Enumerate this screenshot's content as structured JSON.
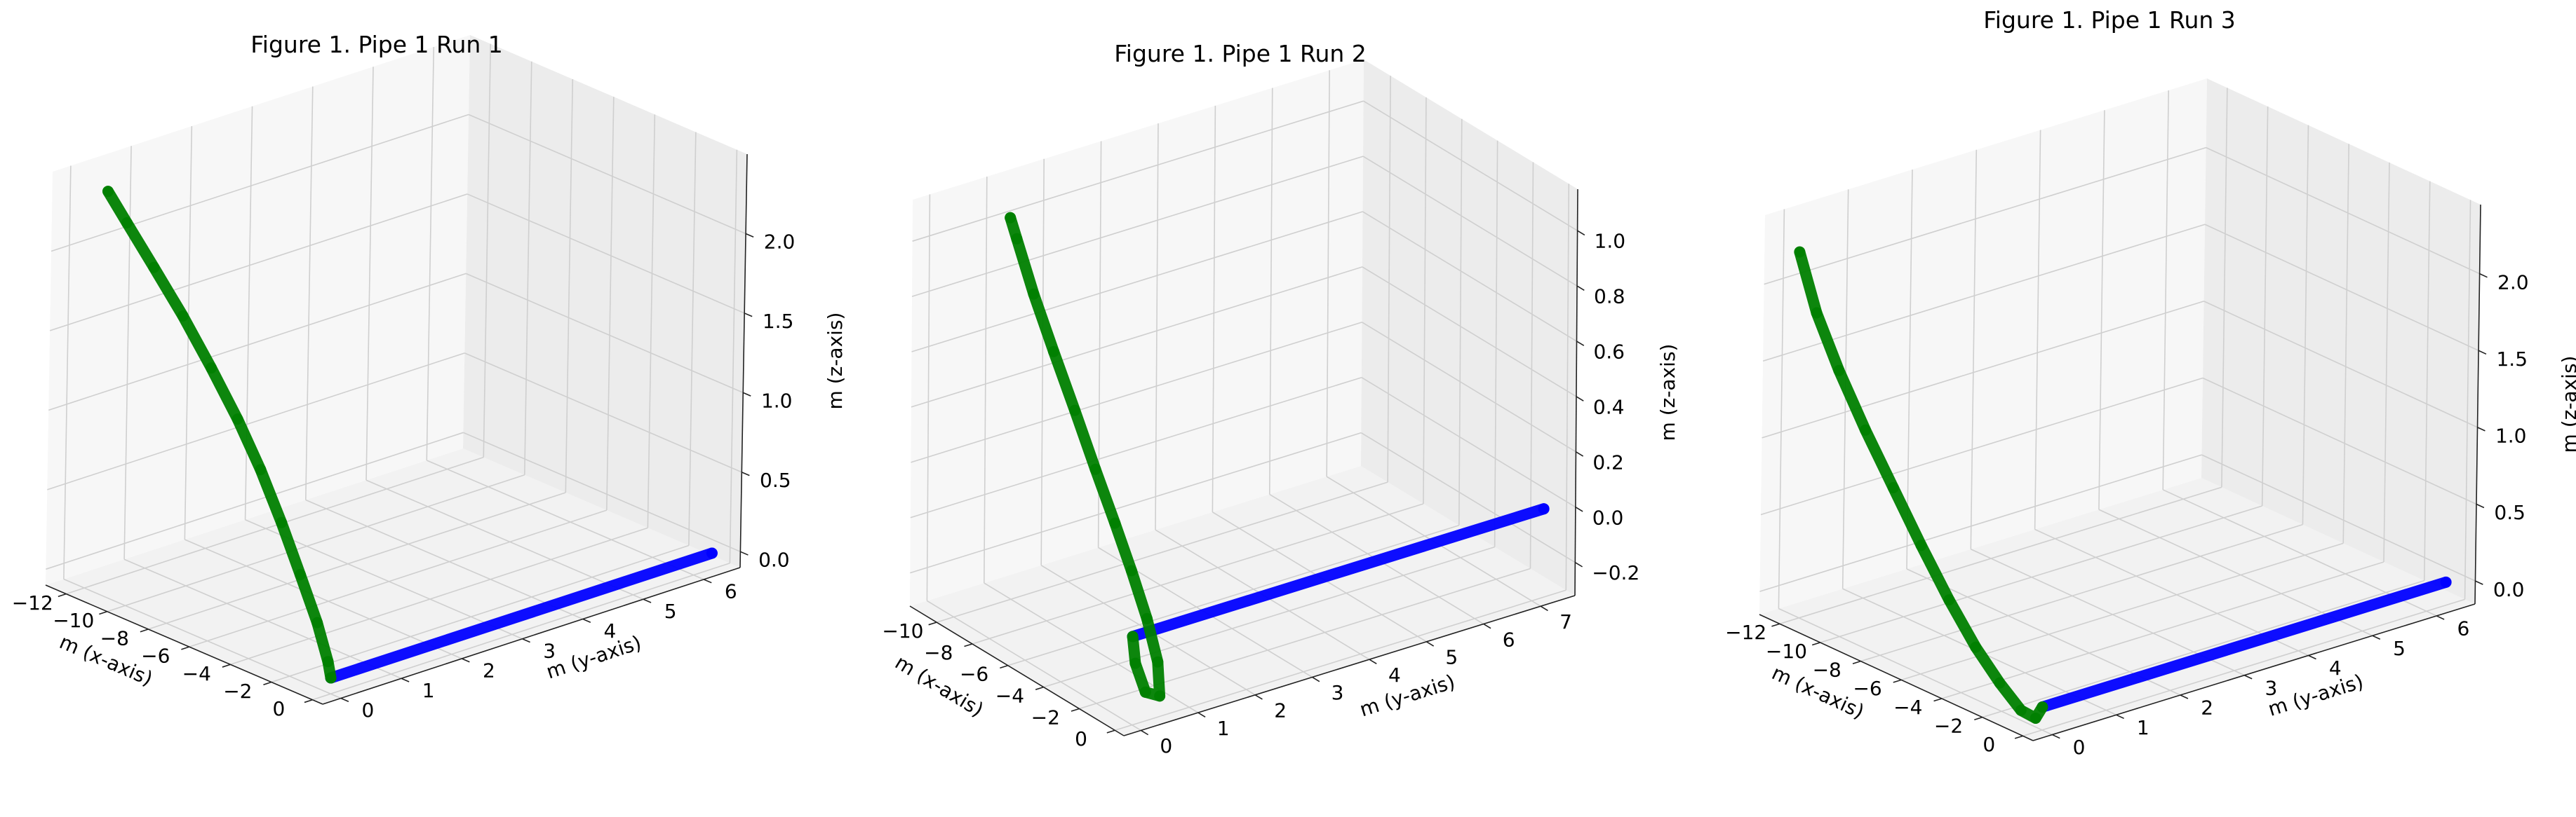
{
  "chart_data": [
    {
      "type": "line",
      "title": "Figure 1. Pipe 1 Run 1",
      "xlabel": "m (x-axis)",
      "ylabel": "m (y-axis)",
      "zlabel": "m (z-axis)",
      "xlim": [
        -13,
        0.5
      ],
      "ylim": [
        -0.3,
        6.6
      ],
      "zlim": [
        -0.1,
        2.5
      ],
      "x_ticks": [
        -12,
        -10,
        -8,
        -6,
        -4,
        -2,
        0
      ],
      "y_ticks": [
        0,
        1,
        2,
        3,
        4,
        5,
        6
      ],
      "z_ticks": [
        0.0,
        0.5,
        1.0,
        1.5,
        2.0
      ],
      "z_tick_labels": [
        "0.0",
        "0.5",
        "1.0",
        "1.5",
        "2.0"
      ],
      "grid": true,
      "series": [
        {
          "color": "#0000ff",
          "x": [
            0,
            0
          ],
          "y": [
            0,
            6.3
          ],
          "z": [
            0,
            0
          ]
        },
        {
          "color": "#008000",
          "x": [
            0,
            -0.3,
            -1.0,
            -2.0,
            -3.1,
            -4.3,
            -5.6,
            -7.0,
            -8.5,
            -10.0,
            -11.4,
            -12.4
          ],
          "y": [
            0,
            0.05,
            0.1,
            0.15,
            0.2,
            0.25,
            0.3,
            0.33,
            0.36,
            0.38,
            0.4,
            0.42
          ],
          "z": [
            0,
            0.08,
            0.28,
            0.52,
            0.78,
            1.04,
            1.28,
            1.52,
            1.76,
            1.98,
            2.18,
            2.32
          ]
        }
      ]
    },
    {
      "type": "line",
      "title": "Figure 1. Pipe 1 Run 2",
      "xlabel": "m (x-axis)",
      "ylabel": "m (y-axis)",
      "zlabel": "m (z-axis)",
      "xlim": [
        -11.5,
        0.5
      ],
      "ylim": [
        -0.3,
        7.6
      ],
      "zlim": [
        -0.32,
        1.15
      ],
      "x_ticks": [
        -10,
        -8,
        -6,
        -4,
        -2,
        0
      ],
      "y_ticks": [
        0,
        1,
        2,
        3,
        4,
        5,
        6,
        7
      ],
      "z_ticks": [
        -0.2,
        0.0,
        0.2,
        0.4,
        0.6,
        0.8,
        1.0
      ],
      "z_tick_labels": [
        "−0.2",
        "0.0",
        "0.2",
        "0.4",
        "0.6",
        "0.8",
        "1.0"
      ],
      "grid": true,
      "series": [
        {
          "color": "#0000ff",
          "x": [
            0,
            0
          ],
          "y": [
            0,
            7.2
          ],
          "z": [
            0,
            0
          ]
        },
        {
          "color": "#008000",
          "x": [
            0,
            0,
            0.1,
            0.1,
            -0.5,
            -1.5,
            -2.7,
            -3.9,
            -5.2,
            -6.5,
            -7.8,
            -9.0,
            -10.0,
            -10.4
          ],
          "y": [
            0,
            0.05,
            0.2,
            0.45,
            0.6,
            0.72,
            0.82,
            0.9,
            0.96,
            1.0,
            1.03,
            1.05,
            1.06,
            1.07
          ],
          "z": [
            0,
            -0.1,
            -0.21,
            -0.24,
            -0.15,
            -0.04,
            0.08,
            0.2,
            0.34,
            0.5,
            0.66,
            0.82,
            0.98,
            1.04
          ]
        }
      ]
    },
    {
      "type": "line",
      "title": "Figure 1. Pipe 1 Run 3",
      "xlabel": "m (x-axis)",
      "ylabel": "m (y-axis)",
      "zlabel": "m (z-axis)",
      "xlim": [
        -13,
        0.5
      ],
      "ylim": [
        -0.3,
        6.6
      ],
      "zlim": [
        -0.15,
        2.45
      ],
      "x_ticks": [
        -12,
        -10,
        -8,
        -6,
        -4,
        -2,
        0
      ],
      "y_ticks": [
        0,
        1,
        2,
        3,
        4,
        5,
        6
      ],
      "z_ticks": [
        0.0,
        0.5,
        1.0,
        1.5,
        2.0
      ],
      "z_tick_labels": [
        "0.0",
        "0.5",
        "1.0",
        "1.5",
        "2.0"
      ],
      "grid": true,
      "series": [
        {
          "color": "#0000ff",
          "x": [
            0,
            0
          ],
          "y": [
            0,
            6.3
          ],
          "z": [
            0,
            0
          ]
        },
        {
          "color": "#008000",
          "x": [
            0,
            -0.2,
            -0.8,
            -1.8,
            -3.0,
            -4.4,
            -5.9,
            -7.4,
            -8.9,
            -10.3,
            -11.5,
            -12.4
          ],
          "y": [
            0,
            -0.04,
            -0.08,
            -0.1,
            -0.1,
            -0.08,
            -0.05,
            -0.02,
            0.01,
            0.03,
            0.05,
            0.06
          ],
          "z": [
            0,
            -0.08,
            -0.06,
            0.06,
            0.22,
            0.44,
            0.7,
            0.98,
            1.26,
            1.56,
            1.86,
            2.2
          ]
        }
      ]
    }
  ]
}
